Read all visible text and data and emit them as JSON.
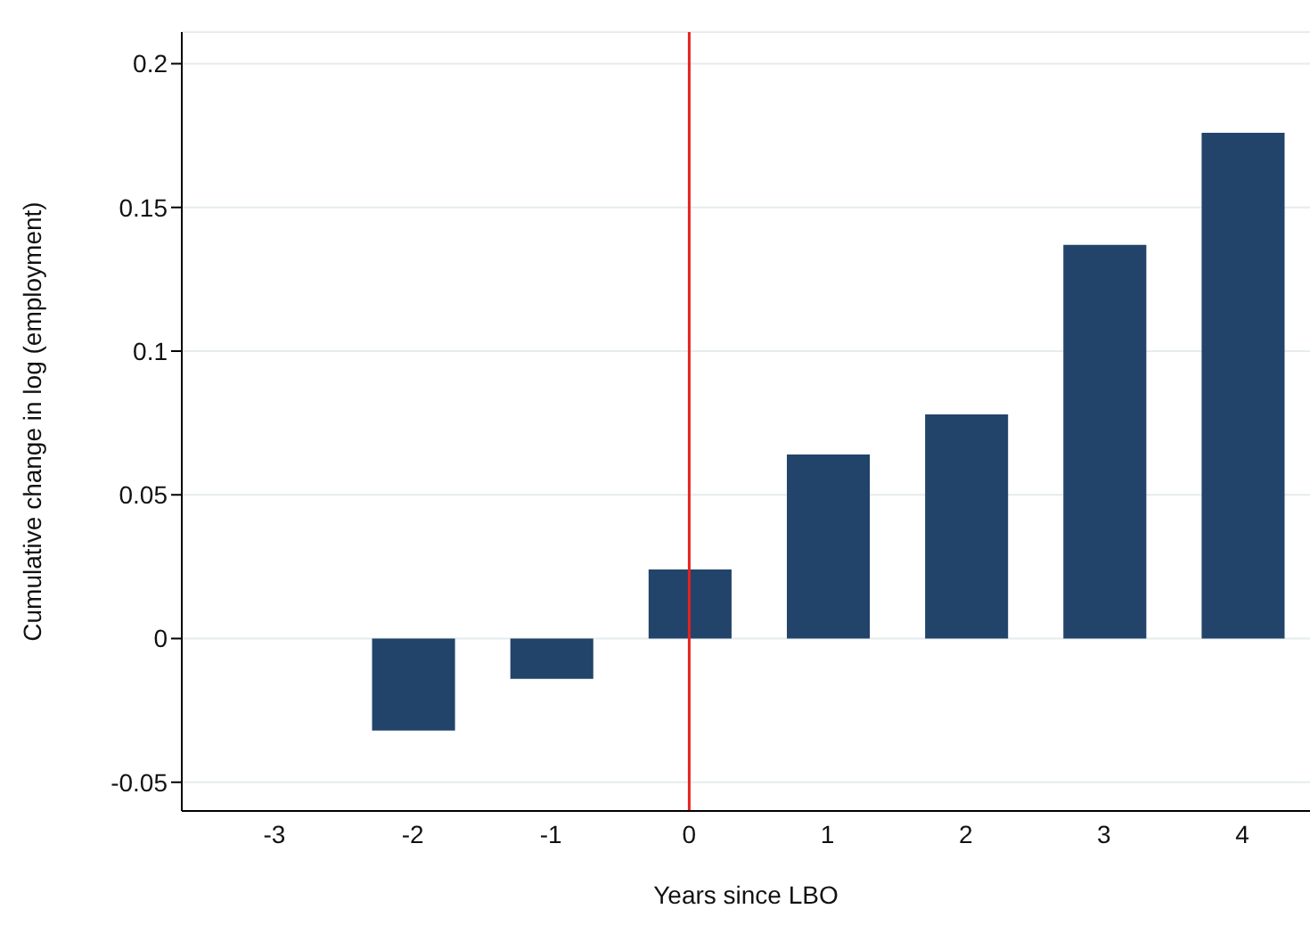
{
  "chart_data": {
    "type": "bar",
    "xlabel": "Years since LBO",
    "ylabel": "Cumulative change in log (employment)",
    "x": [
      -2,
      -1,
      0,
      1,
      2,
      3,
      4
    ],
    "values": [
      -0.032,
      -0.014,
      0.024,
      0.064,
      0.078,
      0.137,
      0.176
    ],
    "color": "#22446b",
    "xlim": [
      -3.67,
      4.49
    ],
    "xticks": [
      -3,
      -2,
      -1,
      0,
      1,
      2,
      3,
      4
    ],
    "ylim": [
      -0.06,
      0.211
    ],
    "yticks": [
      -0.05,
      0,
      0.05,
      0.1,
      0.15,
      0.2
    ],
    "grid": "y",
    "ref_lines": [
      {
        "axis": "x",
        "value": 0,
        "color": "#e8211f"
      }
    ]
  }
}
